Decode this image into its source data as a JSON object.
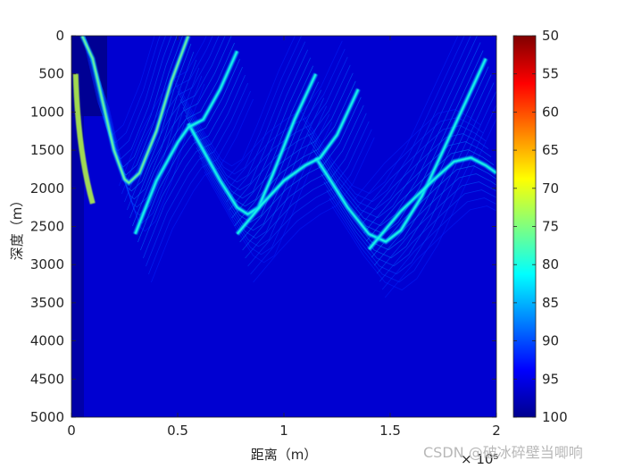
{
  "chart_data": {
    "type": "heatmap",
    "title": "",
    "xlabel": "距离（m）",
    "ylabel": "深度（m）",
    "x_exponent_label": "× 10⁵",
    "xlim": [
      0,
      200000
    ],
    "ylim": [
      0,
      5000
    ],
    "y_reversed": true,
    "x_ticks": [
      0,
      0.5,
      1,
      1.5,
      2
    ],
    "x_tick_labels": [
      "0",
      "0.5",
      "1",
      "1.5",
      "2"
    ],
    "y_ticks": [
      0,
      500,
      1000,
      1500,
      2000,
      2500,
      3000,
      3500,
      4000,
      4500,
      5000
    ],
    "y_tick_labels": [
      "0",
      "500",
      "1000",
      "1500",
      "2000",
      "2500",
      "3000",
      "3500",
      "4000",
      "4500",
      "5000"
    ],
    "colorbar": {
      "colormap": "jet",
      "clim": [
        50,
        100
      ],
      "reversed": true,
      "ticks": [
        50,
        55,
        60,
        65,
        70,
        75,
        80,
        85,
        90,
        95,
        100
      ],
      "tick_labels": [
        "50",
        "55",
        "60",
        "65",
        "70",
        "75",
        "80",
        "85",
        "90",
        "95",
        "100"
      ]
    },
    "background_value": 96,
    "caustic_series": [
      {
        "x": [
          0.05,
          0.1,
          0.15,
          0.2,
          0.25,
          0.27,
          0.32,
          0.4,
          0.47,
          0.55
        ],
        "y": [
          0,
          300,
          900,
          1500,
          1880,
          1930,
          1800,
          1250,
          600,
          0
        ]
      },
      {
        "x": [
          0.55,
          0.62,
          0.7,
          0.78,
          0.83,
          0.88,
          0.95,
          1.05,
          1.15
        ],
        "y": [
          1150,
          1500,
          1900,
          2250,
          2340,
          2250,
          1800,
          1100,
          500
        ]
      },
      {
        "x": [
          1.15,
          1.22,
          1.3,
          1.4,
          1.48,
          1.55,
          1.65,
          1.75,
          1.85,
          1.95
        ],
        "y": [
          1600,
          1900,
          2250,
          2600,
          2700,
          2550,
          2100,
          1500,
          900,
          300
        ]
      },
      {
        "x": [
          0.3,
          0.4,
          0.5,
          0.55,
          0.62,
          0.7,
          0.78
        ],
        "y": [
          2600,
          1900,
          1400,
          1200,
          1100,
          700,
          200
        ]
      },
      {
        "x": [
          0.78,
          0.9,
          1.0,
          1.1,
          1.17,
          1.25,
          1.35
        ],
        "y": [
          2600,
          2200,
          1900,
          1700,
          1600,
          1300,
          700
        ]
      },
      {
        "x": [
          1.4,
          1.55,
          1.7,
          1.8,
          1.88,
          1.95,
          2.0
        ],
        "y": [
          2800,
          2300,
          1900,
          1650,
          1600,
          1700,
          1800
        ]
      }
    ]
  },
  "watermark": "CSDN @破冰碎壁当唧响"
}
